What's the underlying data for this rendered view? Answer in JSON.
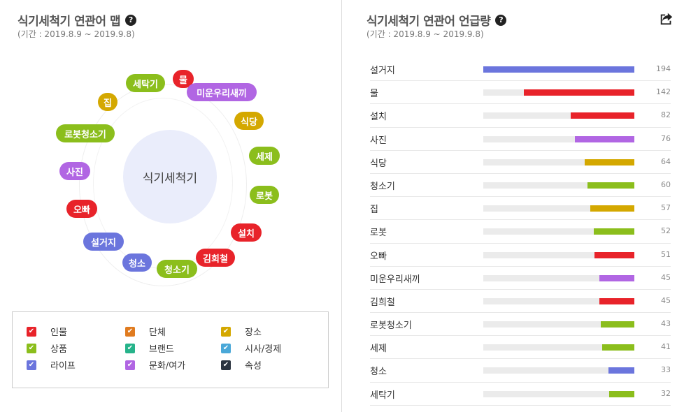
{
  "left": {
    "title": "식기세척기 연관어 맵",
    "period": "(기간 : 2019.8.9 ~ 2019.9.8)",
    "center_keyword": "식기세척기",
    "keywords": [
      {
        "text": "물",
        "color": "#e8232a"
      },
      {
        "text": "미운우리새끼",
        "color": "#b166e3"
      },
      {
        "text": "세탁기",
        "color": "#8bbe1c"
      },
      {
        "text": "집",
        "color": "#d4a800"
      },
      {
        "text": "식당",
        "color": "#d4a800"
      },
      {
        "text": "로봇청소기",
        "color": "#8bbe1c"
      },
      {
        "text": "세제",
        "color": "#8bbe1c"
      },
      {
        "text": "사진",
        "color": "#b166e3"
      },
      {
        "text": "로봇",
        "color": "#8bbe1c"
      },
      {
        "text": "오빠",
        "color": "#e8232a"
      },
      {
        "text": "설치",
        "color": "#e8232a"
      },
      {
        "text": "설거지",
        "color": "#6b75dd"
      },
      {
        "text": "김희철",
        "color": "#e8232a"
      },
      {
        "text": "청소",
        "color": "#6b75dd"
      },
      {
        "text": "청소기",
        "color": "#8bbe1c"
      }
    ],
    "legend": [
      {
        "label": "인물",
        "color": "#e8232a"
      },
      {
        "label": "단체",
        "color": "#e07b1f"
      },
      {
        "label": "장소",
        "color": "#d4a800"
      },
      {
        "label": "상품",
        "color": "#8bbe1c"
      },
      {
        "label": "브랜드",
        "color": "#26b38a"
      },
      {
        "label": "시사/경제",
        "color": "#4aa8d8"
      },
      {
        "label": "라이프",
        "color": "#6b75dd"
      },
      {
        "label": "문화/여가",
        "color": "#b166e3"
      },
      {
        "label": "속성",
        "color": "#2b3440"
      }
    ]
  },
  "right": {
    "title": "식기세척기 연관어 언급량",
    "period": "(기간 : 2019.8.9 ~ 2019.9.8)",
    "share_icon": "share-icon"
  },
  "chart_data": {
    "type": "bar",
    "categories": [
      "설거지",
      "물",
      "설치",
      "사진",
      "식당",
      "청소기",
      "집",
      "로봇",
      "오빠",
      "미운우리새끼",
      "김희철",
      "로봇청소기",
      "세제",
      "청소",
      "세탁기"
    ],
    "values": [
      194,
      142,
      82,
      76,
      64,
      60,
      57,
      52,
      51,
      45,
      45,
      43,
      41,
      33,
      32
    ],
    "colors": [
      "#6b75dd",
      "#e8232a",
      "#e8232a",
      "#b166e3",
      "#d4a800",
      "#8bbe1c",
      "#d4a800",
      "#8bbe1c",
      "#e8232a",
      "#b166e3",
      "#e8232a",
      "#8bbe1c",
      "#8bbe1c",
      "#6b75dd",
      "#8bbe1c"
    ],
    "title": "식기세척기 연관어 언급량",
    "xlim": [
      0,
      194
    ]
  }
}
